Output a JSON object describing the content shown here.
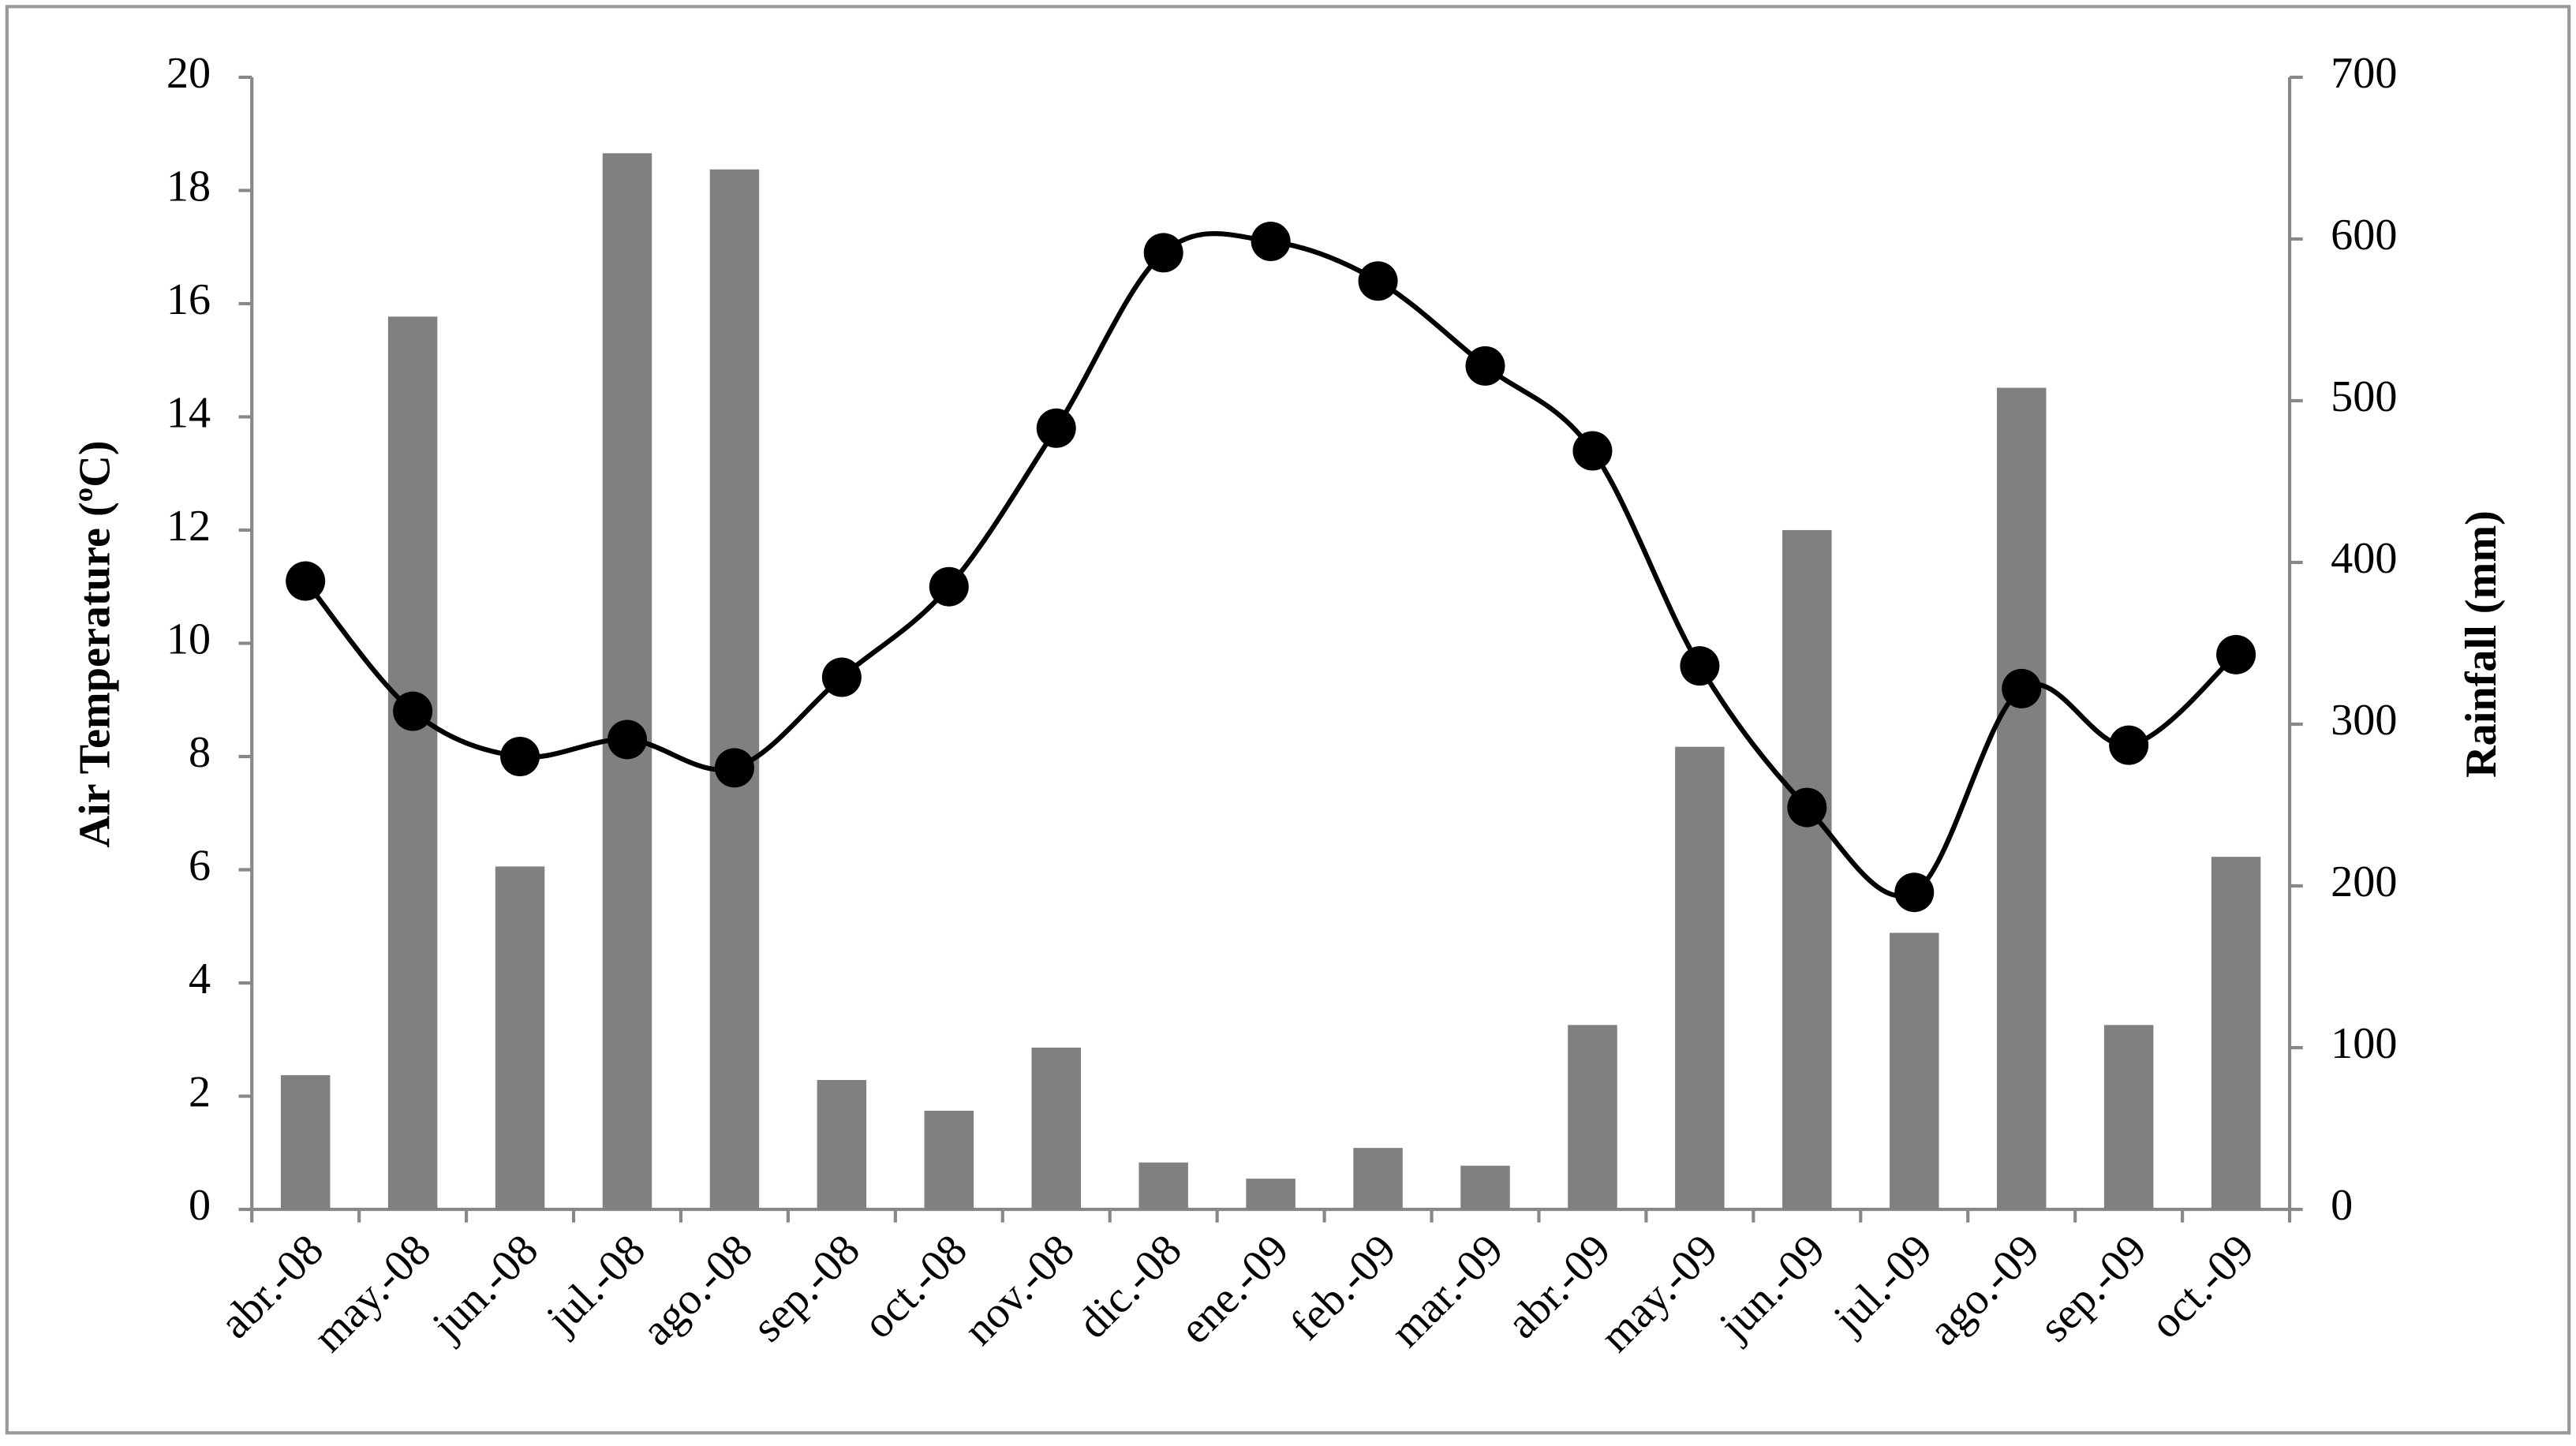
{
  "chart_data": {
    "type": "bar",
    "categories": [
      "abr.-08",
      "may.-08",
      "jun.-08",
      "jul.-08",
      "ago.-08",
      "sep.-08",
      "oct.-08",
      "nov.-08",
      "dic.-08",
      "ene.-09",
      "feb.-09",
      "mar.-09",
      "abr.-09",
      "may.-09",
      "jun.-09",
      "jul.-09",
      "ago.-09",
      "sep.-09",
      "oct.-09"
    ],
    "series": [
      {
        "type": "bar",
        "axis": "y2",
        "color": "#808080",
        "values": [
          83,
          552,
          212,
          653,
          643,
          80,
          61,
          100,
          29,
          19,
          38,
          27,
          114,
          286,
          420,
          171,
          508,
          114,
          218
        ]
      },
      {
        "type": "line",
        "axis": "y",
        "color": "#000000",
        "values": [
          11.1,
          8.8,
          8.0,
          8.3,
          7.8,
          9.4,
          11.0,
          13.8,
          16.9,
          17.1,
          16.4,
          14.9,
          13.4,
          9.6,
          7.1,
          5.6,
          9.2,
          8.2,
          9.8
        ]
      }
    ],
    "ylabel": "Air Temperature (ºC)",
    "y2label": "Rainfall (mm)",
    "ylim": [
      0,
      20
    ],
    "yticks": [
      0,
      2,
      4,
      6,
      8,
      10,
      12,
      14,
      16,
      18,
      20
    ],
    "y2lim": [
      0,
      700
    ],
    "y2ticks": [
      0,
      100,
      200,
      300,
      400,
      500,
      600,
      700
    ],
    "grid": false
  }
}
